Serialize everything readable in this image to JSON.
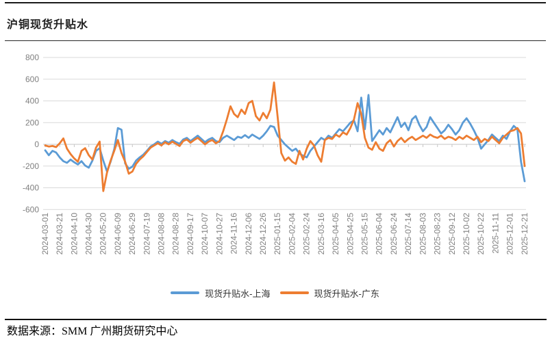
{
  "header": {
    "title": "沪铜现货升贴水"
  },
  "footer": {
    "source": "数据来源：SMM  广州期货研究中心"
  },
  "chart_data": {
    "type": "line",
    "title": "沪铜现货升贴水",
    "xlabel": "",
    "ylabel": "",
    "ylim": [
      -600,
      800
    ],
    "y_ticks": [
      800,
      600,
      400,
      200,
      0,
      -200,
      -400,
      -600
    ],
    "grid": "horizontal",
    "gridline_color": "#d9d9d9",
    "axis_color": "#c6c6c6",
    "axis_label_color": "#7f7f7f",
    "legend_position": "bottom",
    "points_per_tick": 4,
    "point_interval_days": 5,
    "x_tick_labels": [
      "2024-03-01",
      "2024-03-21",
      "2024-04-10",
      "2024-04-30",
      "2024-05-20",
      "2024-06-09",
      "2024-06-29",
      "2024-07-19",
      "2024-08-08",
      "2024-08-28",
      "2024-09-17",
      "2024-10-07",
      "2024-10-27",
      "2024-11-16",
      "2024-12-06",
      "2024-12-26",
      "2025-01-15",
      "2025-02-04",
      "2025-02-24",
      "2025-03-16",
      "2025-04-05",
      "2025-04-25",
      "2025-05-15",
      "2025-06-04",
      "2025-06-24",
      "2025-07-14",
      "2025-08-03",
      "2025-08-23",
      "2025-09-12",
      "2025-10-02",
      "2025-10-22",
      "2025-11-11",
      "2025-12-01",
      "2025-12-21"
    ],
    "series": [
      {
        "name": "现货升贴水-上海",
        "color": "#5B9BD5",
        "values": [
          -55,
          -100,
          -60,
          -75,
          -120,
          -155,
          -170,
          -140,
          -165,
          -185,
          -155,
          -195,
          -215,
          -150,
          -60,
          -35,
          -150,
          -250,
          -160,
          -45,
          150,
          135,
          -175,
          -225,
          -205,
          -150,
          -120,
          -95,
          -60,
          -20,
          0,
          25,
          5,
          30,
          15,
          40,
          20,
          5,
          45,
          60,
          30,
          55,
          80,
          50,
          20,
          45,
          60,
          30,
          20,
          60,
          80,
          60,
          40,
          70,
          60,
          85,
          60,
          90,
          70,
          50,
          80,
          120,
          170,
          160,
          80,
          40,
          0,
          -30,
          -60,
          -40,
          -85,
          -105,
          -120,
          -60,
          -20,
          20,
          60,
          40,
          80,
          60,
          100,
          140,
          120,
          160,
          200,
          220,
          120,
          430,
          140,
          455,
          30,
          80,
          130,
          90,
          150,
          110,
          180,
          250,
          160,
          200,
          130,
          230,
          260,
          180,
          120,
          160,
          250,
          200,
          150,
          100,
          130,
          180,
          140,
          90,
          130,
          200,
          240,
          190,
          130,
          60,
          -40,
          0,
          40,
          90,
          60,
          30,
          80,
          50,
          120,
          170,
          140,
          -160,
          -340
        ]
      },
      {
        "name": "现货升贴水-广东",
        "color": "#ED7D31",
        "values": [
          -10,
          -20,
          -15,
          -25,
          10,
          55,
          -40,
          -90,
          -130,
          -160,
          -60,
          -35,
          -100,
          -140,
          -30,
          25,
          -430,
          -260,
          -150,
          -60,
          40,
          -80,
          -160,
          -270,
          -250,
          -180,
          -140,
          -110,
          -70,
          -30,
          -10,
          10,
          -10,
          20,
          0,
          25,
          5,
          -15,
          30,
          45,
          15,
          40,
          60,
          30,
          0,
          25,
          40,
          10,
          30,
          120,
          230,
          350,
          280,
          250,
          320,
          280,
          380,
          400,
          260,
          220,
          290,
          240,
          320,
          570,
          250,
          -80,
          -150,
          -120,
          -160,
          -180,
          -60,
          -140,
          -40,
          30,
          -10,
          -100,
          -160,
          40,
          60,
          50,
          90,
          70,
          110,
          90,
          150,
          230,
          380,
          280,
          60,
          -30,
          -50,
          20,
          -40,
          -60,
          10,
          40,
          -20,
          30,
          60,
          20,
          50,
          70,
          40,
          60,
          80,
          60,
          90,
          70,
          60,
          80,
          50,
          70,
          60,
          40,
          70,
          50,
          80,
          60,
          40,
          70,
          20,
          50,
          30,
          70,
          40,
          10,
          60,
          90,
          120,
          130,
          150,
          100,
          -200
        ]
      }
    ]
  }
}
